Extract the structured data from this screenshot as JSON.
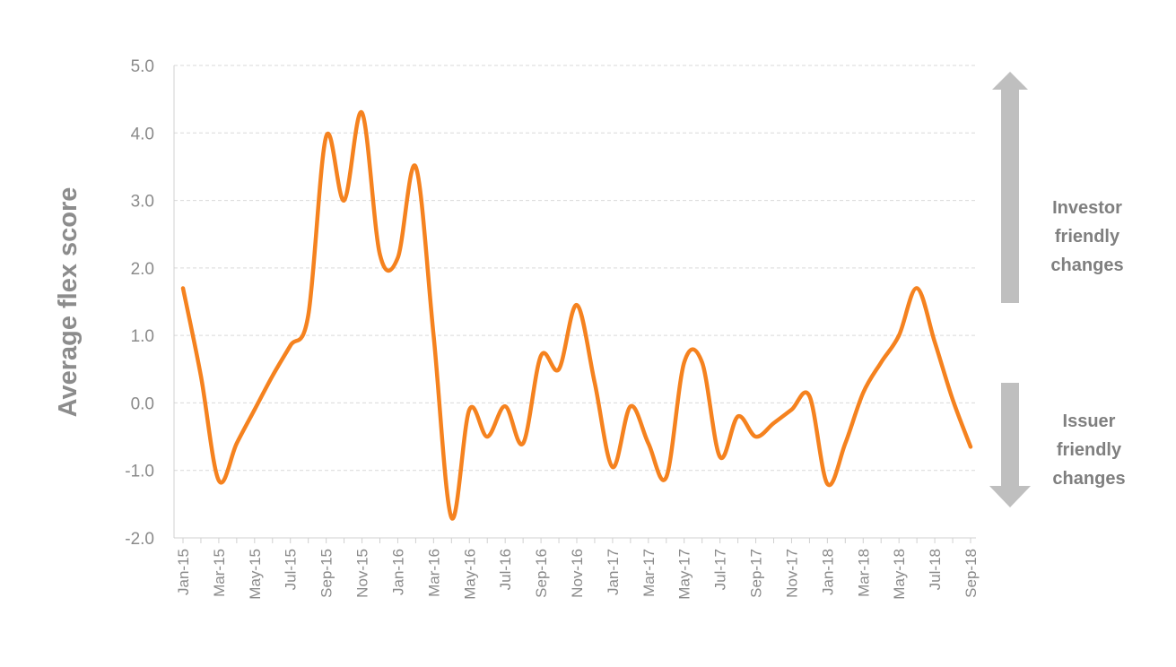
{
  "chart_data": {
    "type": "line",
    "title": "",
    "xlabel": "",
    "ylabel": "Average flex score",
    "ylim": [
      -2.0,
      5.0
    ],
    "yticks": [
      "5.0",
      "4.0",
      "3.0",
      "2.0",
      "1.0",
      "0.0",
      "-1.0",
      "-2.0"
    ],
    "x_tick_labels": [
      "Jan-15",
      "Mar-15",
      "May-15",
      "Jul-15",
      "Sep-15",
      "Nov-15",
      "Jan-16",
      "Mar-16",
      "May-16",
      "Jul-16",
      "Sep-16",
      "Nov-16",
      "Jan-17",
      "Mar-17",
      "May-17",
      "Jul-17",
      "Sep-17",
      "Nov-17",
      "Jan-18",
      "Mar-18",
      "May-18",
      "Jul-18",
      "Sep-18"
    ],
    "grid": true,
    "series_color": "#f5821f",
    "x": [
      "Jan-15",
      "Feb-15",
      "Mar-15",
      "Apr-15",
      "May-15",
      "Jun-15",
      "Jul-15",
      "Aug-15",
      "Sep-15",
      "Oct-15",
      "Nov-15",
      "Dec-15",
      "Jan-16",
      "Feb-16",
      "Mar-16",
      "Apr-16",
      "May-16",
      "Jun-16",
      "Jul-16",
      "Aug-16",
      "Sep-16",
      "Oct-16",
      "Nov-16",
      "Dec-16",
      "Jan-17",
      "Feb-17",
      "Mar-17",
      "Apr-17",
      "May-17",
      "Jun-17",
      "Jul-17",
      "Aug-17",
      "Sep-17",
      "Oct-17",
      "Nov-17",
      "Dec-17",
      "Jan-18",
      "Feb-18",
      "Mar-18",
      "Apr-18",
      "May-18",
      "Jun-18",
      "Jul-18",
      "Aug-18",
      "Sep-18"
    ],
    "series": [
      {
        "values": [
          1.7,
          0.4,
          -1.15,
          -0.6,
          -0.1,
          0.4,
          0.85,
          1.3,
          3.95,
          3.0,
          4.3,
          2.2,
          2.15,
          3.5,
          1.0,
          -1.7,
          -0.1,
          -0.5,
          -0.05,
          -0.6,
          0.7,
          0.5,
          1.45,
          0.3,
          -0.95,
          -0.05,
          -0.6,
          -1.1,
          0.6,
          0.6,
          -0.8,
          -0.2,
          -0.5,
          -0.3,
          -0.1,
          0.1,
          -1.2,
          -0.6,
          0.15,
          0.6,
          1.0,
          1.7,
          0.9,
          0.05,
          -0.65
        ]
      }
    ],
    "annotations": {
      "investor": [
        "Investor",
        "friendly",
        "changes"
      ],
      "issuer": [
        "Issuer",
        "friendly",
        "changes"
      ],
      "arrow_color": "#bfbfbf"
    }
  }
}
